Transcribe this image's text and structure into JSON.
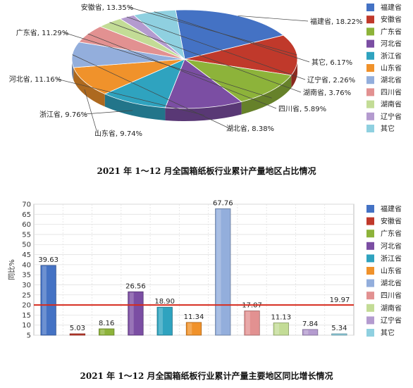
{
  "chart_data": [
    {
      "type": "pie",
      "title": "2021 年 1～12 月全国箱纸板行业累计产量地区占比情况",
      "legend_position": "right",
      "slices": [
        {
          "name": "福建省",
          "value": 18.22,
          "label": "福建省, 18.22%",
          "color": "#4472c4"
        },
        {
          "name": "安徽省",
          "value": 13.35,
          "label": "安徽省, 13.35%",
          "color": "#c0392b"
        },
        {
          "name": "广东省",
          "value": 11.29,
          "label": "广东省, 11.29%",
          "color": "#8db33a"
        },
        {
          "name": "河北省",
          "value": 11.16,
          "label": "河北省, 11.16%",
          "color": "#7b4ea3"
        },
        {
          "name": "浙江省",
          "value": 9.76,
          "label": "浙江省, 9.76%",
          "color": "#2fa3bf"
        },
        {
          "name": "山东省",
          "value": 9.74,
          "label": "山东省, 9.74%",
          "color": "#f0922b"
        },
        {
          "name": "湖北省",
          "value": 8.38,
          "label": "湖北省, 8.38%",
          "color": "#93aedc"
        },
        {
          "name": "四川省",
          "value": 5.89,
          "label": "四川省, 5.89%",
          "color": "#e29191"
        },
        {
          "name": "湖南省",
          "value": 3.76,
          "label": "湖南省, 3.76%",
          "color": "#c3dc96"
        },
        {
          "name": "辽宁省",
          "value": 2.26,
          "label": "辽宁省, 2.26%",
          "color": "#b49bcf"
        },
        {
          "name": "其它",
          "value": 6.17,
          "label": "其它, 6.17%",
          "color": "#8fd0e0"
        }
      ],
      "legend": [
        "福建省",
        "安徽省",
        "广东省",
        "河北省",
        "浙江省",
        "山东省",
        "湖北省",
        "四川省",
        "湖南省",
        "辽宁省",
        "其它"
      ]
    },
    {
      "type": "bar",
      "title": "2021 年 1～12 月全国箱纸板行业累计产量主要地区同比增长情况",
      "ylabel": "同比%",
      "ylim": [
        5,
        70
      ],
      "yticks": [
        5,
        10,
        15,
        20,
        25,
        30,
        35,
        40,
        45,
        50,
        55,
        60,
        65,
        70
      ],
      "grid": true,
      "legend_position": "right",
      "categories": [
        "福建省",
        "安徽省",
        "广东省",
        "河北省",
        "浙江省",
        "山东省",
        "湖北省",
        "四川省",
        "湖南省",
        "辽宁省",
        "其它"
      ],
      "values": [
        39.63,
        5.03,
        8.16,
        26.56,
        18.9,
        11.34,
        67.76,
        17.07,
        11.13,
        7.84,
        5.34
      ],
      "value_labels": [
        "39.63",
        "5.03",
        "8.16",
        "26.56",
        "18.90",
        "11.34",
        "67.76",
        "17.07",
        "11.13",
        "7.84",
        "5.34"
      ],
      "colors": [
        "#4472c4",
        "#c0392b",
        "#8db33a",
        "#7b4ea3",
        "#2fa3bf",
        "#f0922b",
        "#93aedc",
        "#e29191",
        "#c3dc96",
        "#b49bcf",
        "#8fd0e0"
      ],
      "reference_line": {
        "value": 19.97,
        "label": "19.97",
        "color": "#d62b1e"
      },
      "legend": [
        "福建省",
        "安徽省",
        "广东省",
        "河北省",
        "浙江省",
        "山东省",
        "湖北省",
        "四川省",
        "湖南省",
        "辽宁省",
        "其它"
      ]
    }
  ]
}
